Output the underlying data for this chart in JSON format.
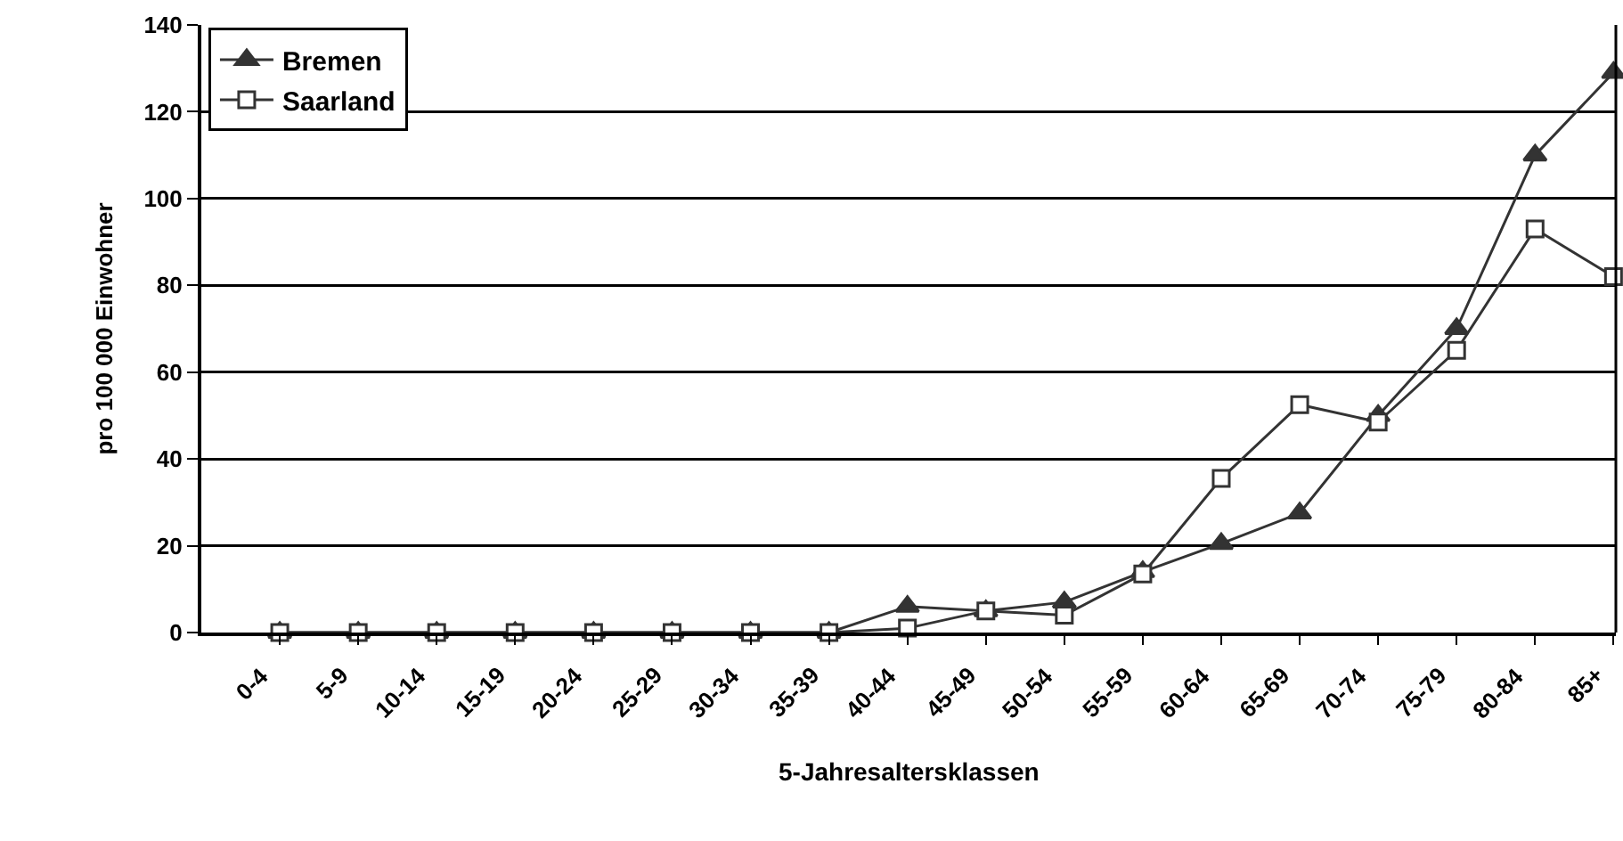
{
  "chart_data": {
    "type": "line",
    "xlabel": "5-Jahresaltersklassen",
    "ylabel": "pro 100 000 Einwohner",
    "categories": [
      "0-4",
      "5-9",
      "10-14",
      "15-19",
      "20-24",
      "25-29",
      "30-34",
      "35-39",
      "40-44",
      "45-49",
      "50-54",
      "55-59",
      "60-64",
      "65-69",
      "70-74",
      "75-79",
      "80-84",
      "85+"
    ],
    "series": [
      {
        "name": "Bremen",
        "color": "#333333",
        "marker": "triangle",
        "values": [
          0,
          0,
          0,
          0,
          0,
          0,
          0,
          0,
          6,
          5,
          7,
          14,
          20.5,
          27.5,
          50,
          70,
          110,
          129
        ]
      },
      {
        "name": "Saarland",
        "color": "#333333",
        "marker": "square",
        "values": [
          0,
          0,
          0,
          0,
          0,
          0,
          0,
          0,
          1,
          5,
          4,
          13.5,
          35.5,
          52.5,
          48.5,
          65,
          93,
          82
        ]
      }
    ],
    "ylim": [
      0,
      140
    ],
    "yticks": [
      0,
      20,
      40,
      60,
      80,
      100,
      120,
      140
    ],
    "grid": "y",
    "legend": "top left",
    "line_style": "solid"
  }
}
